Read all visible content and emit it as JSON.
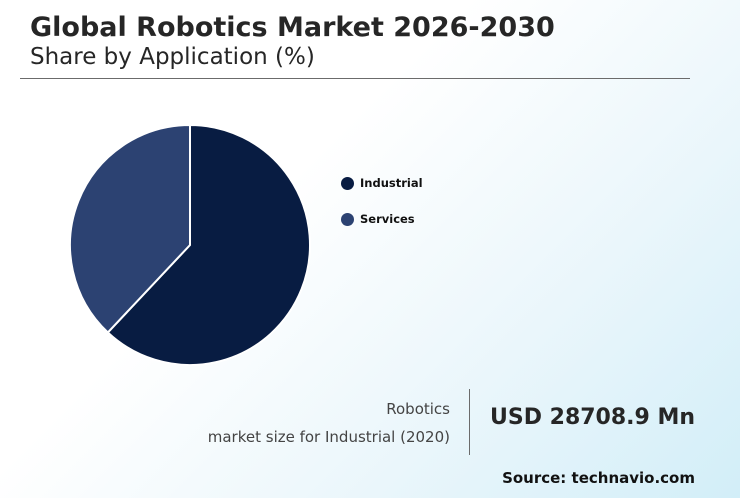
{
  "header": {
    "title": "Global Robotics Market 2026-2030",
    "subtitle": "Share by Application (%)"
  },
  "chart_data": {
    "type": "pie",
    "title": "Global Robotics Market 2026-2030",
    "subtitle": "Share by Application (%)",
    "categories": [
      "Industrial",
      "Services"
    ],
    "values": [
      62,
      38
    ],
    "colors": [
      "#081c42",
      "#2c4272"
    ],
    "legend_placement": "right"
  },
  "stat": {
    "label_line1": "Robotics",
    "label_line2": "market size for Industrial (2020)",
    "value": "USD 28708.9 Mn"
  },
  "footer": {
    "source": "Source: technavio.com"
  }
}
